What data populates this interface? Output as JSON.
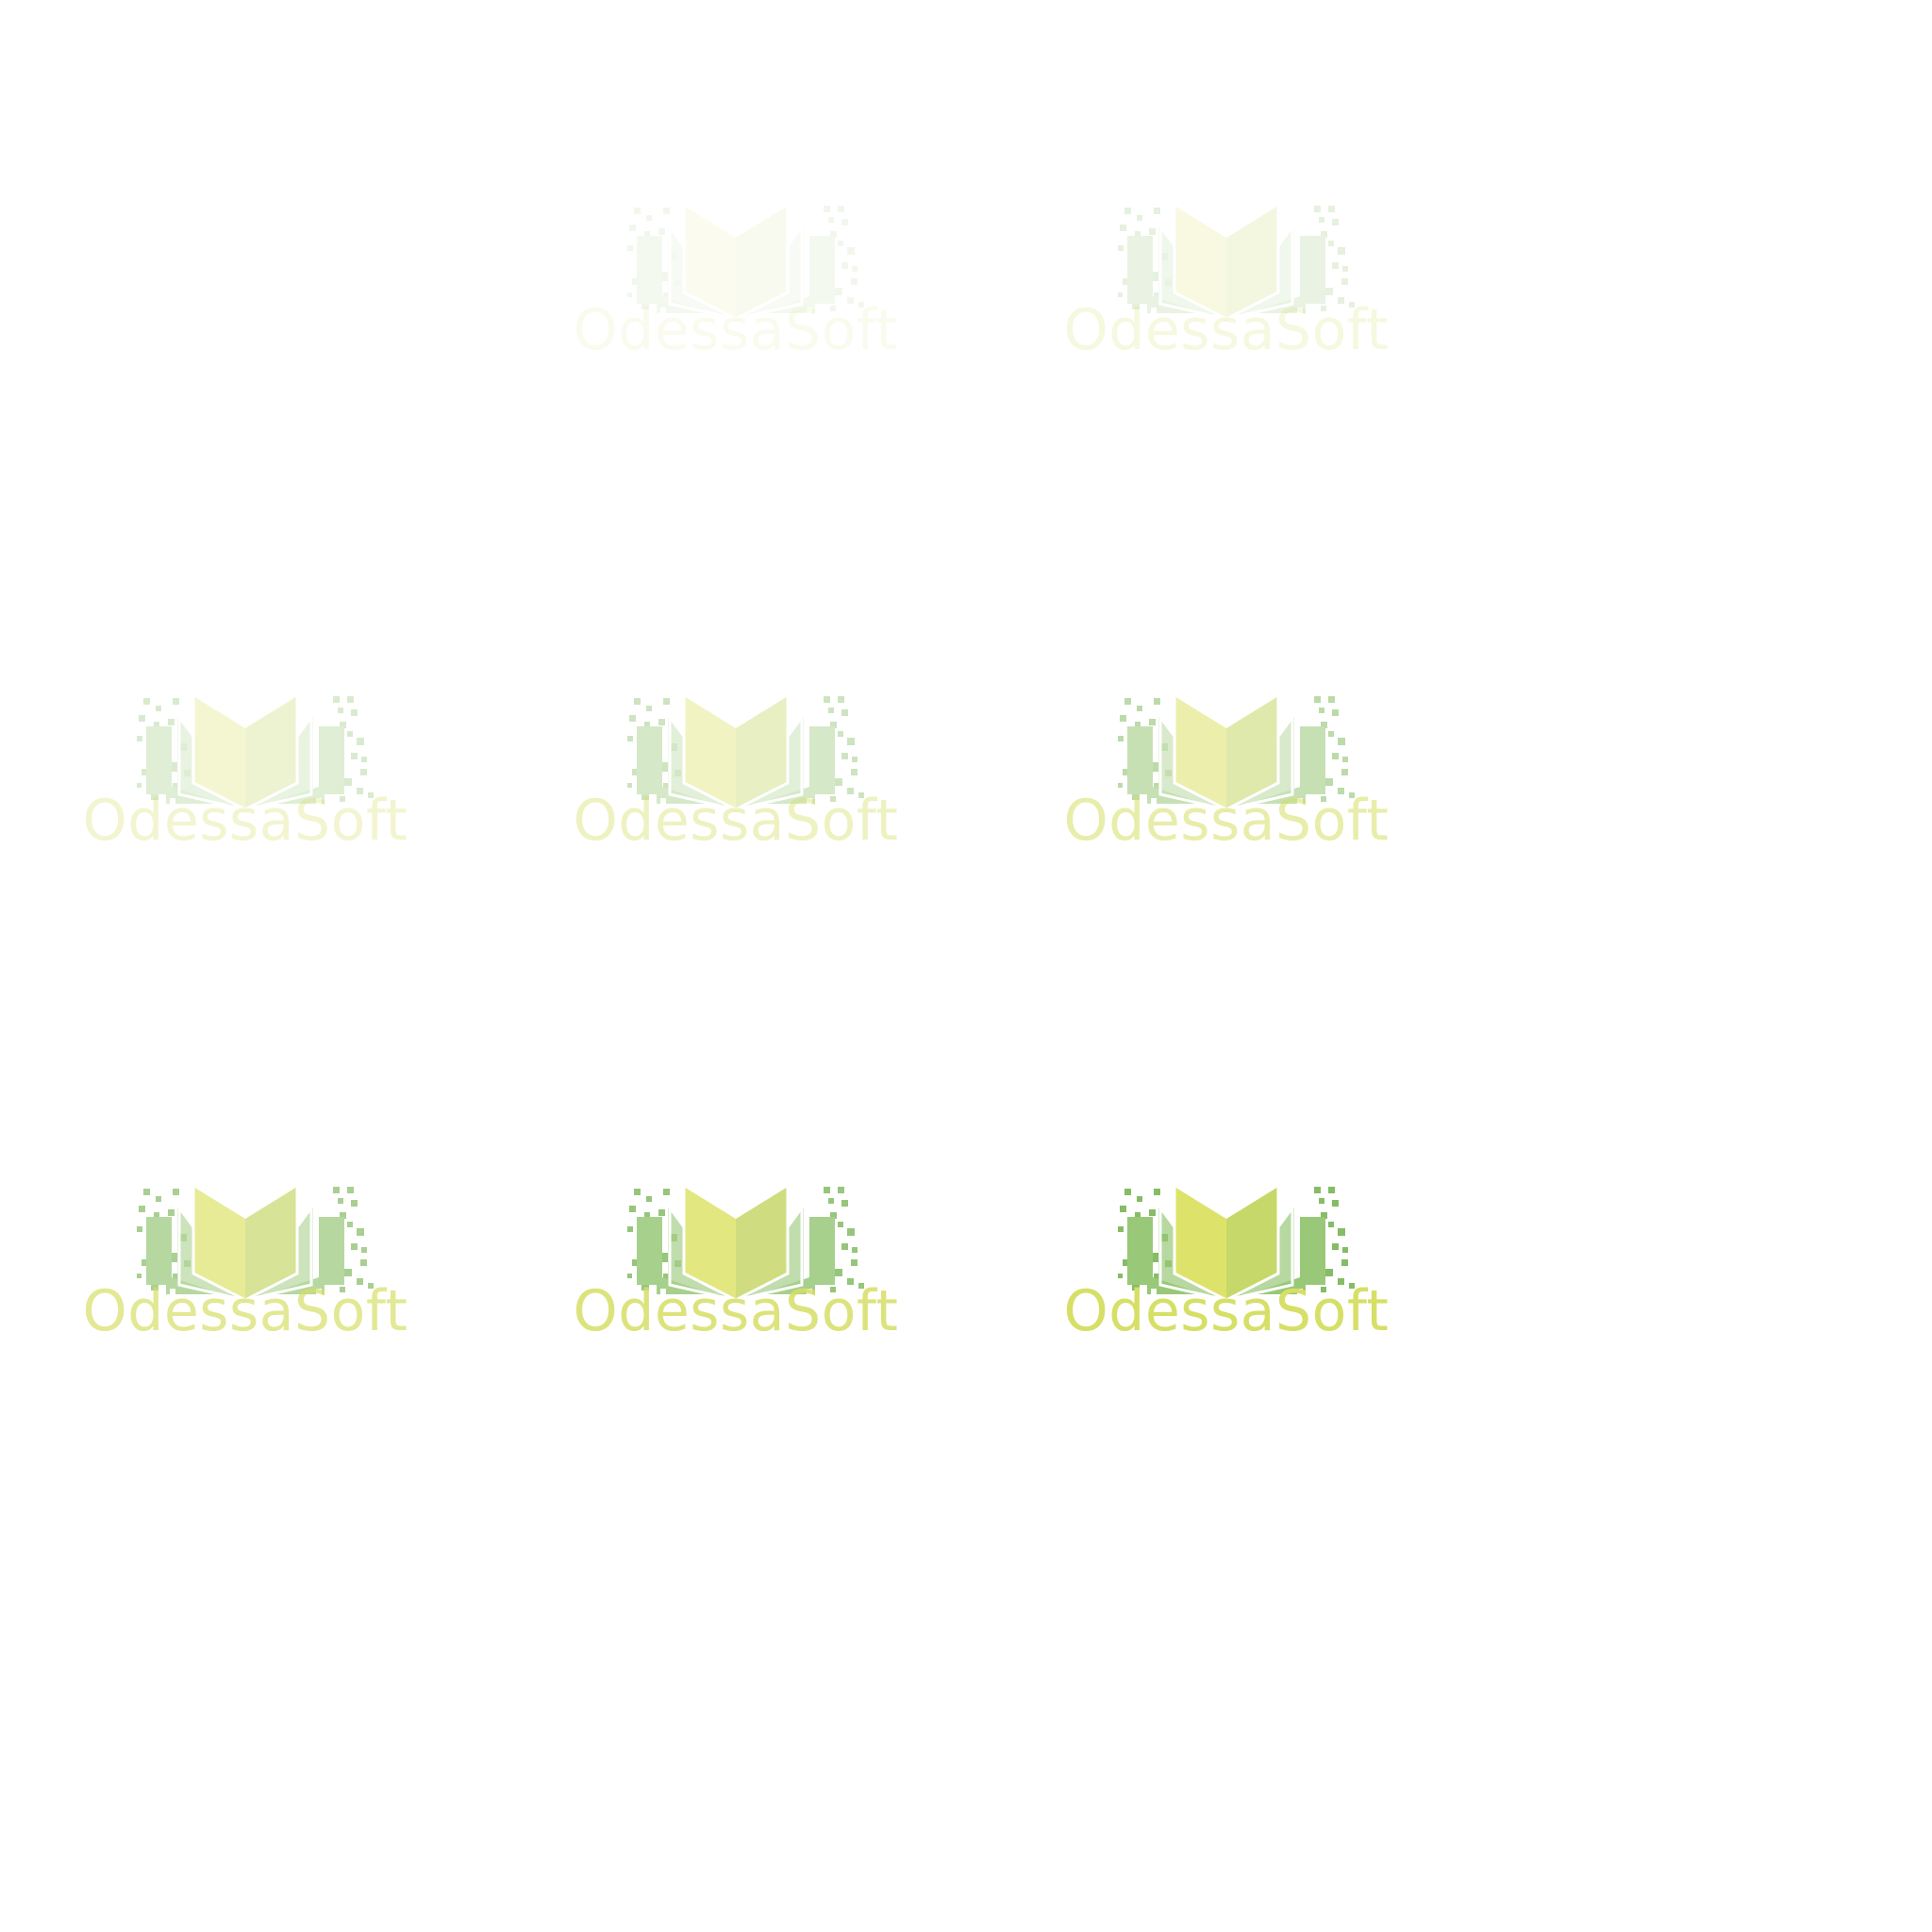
{
  "logos": [
    {
      "name": "OdessaSoft",
      "opacity": 0.1,
      "colors": {
        "text": "#d6df66",
        "page_left": "#dde36a",
        "page_right": "#c7d86a",
        "cover": "#98c878",
        "pixels": "#86bc66"
      }
    },
    {
      "name": "OdessaSoft",
      "opacity": 0.2,
      "colors": {
        "text": "#d6df66",
        "page_left": "#dde36a",
        "page_right": "#c7d86a",
        "cover": "#98c878",
        "pixels": "#86bc66"
      }
    },
    {
      "name": "OdessaSoft",
      "opacity": 0.3,
      "colors": {
        "text": "#d6df66",
        "page_left": "#dde36a",
        "page_right": "#c7d86a",
        "cover": "#98c878",
        "pixels": "#86bc66"
      }
    },
    {
      "name": "OdessaSoft",
      "opacity": 0.4,
      "colors": {
        "text": "#d6df66",
        "page_left": "#dde36a",
        "page_right": "#c7d86a",
        "cover": "#98c878",
        "pixels": "#86bc66"
      }
    },
    {
      "name": "OdessaSoft",
      "opacity": 0.55,
      "colors": {
        "text": "#d6df66",
        "page_left": "#dde36a",
        "page_right": "#c7d86a",
        "cover": "#98c878",
        "pixels": "#86bc66"
      }
    },
    {
      "name": "OdessaSoft",
      "opacity": 0.7,
      "colors": {
        "text": "#d6df66",
        "page_left": "#dde36a",
        "page_right": "#c7d86a",
        "cover": "#98c878",
        "pixels": "#86bc66"
      }
    },
    {
      "name": "OdessaSoft",
      "opacity": 0.85,
      "colors": {
        "text": "#d6df66",
        "page_left": "#dde36a",
        "page_right": "#c7d86a",
        "cover": "#98c878",
        "pixels": "#86bc66"
      }
    },
    {
      "name": "OdessaSoft",
      "opacity": 1.0,
      "colors": {
        "text": "#d6df66",
        "page_left": "#dde36a",
        "page_right": "#c7d86a",
        "cover": "#98c878",
        "pixels": "#86bc66"
      }
    }
  ]
}
